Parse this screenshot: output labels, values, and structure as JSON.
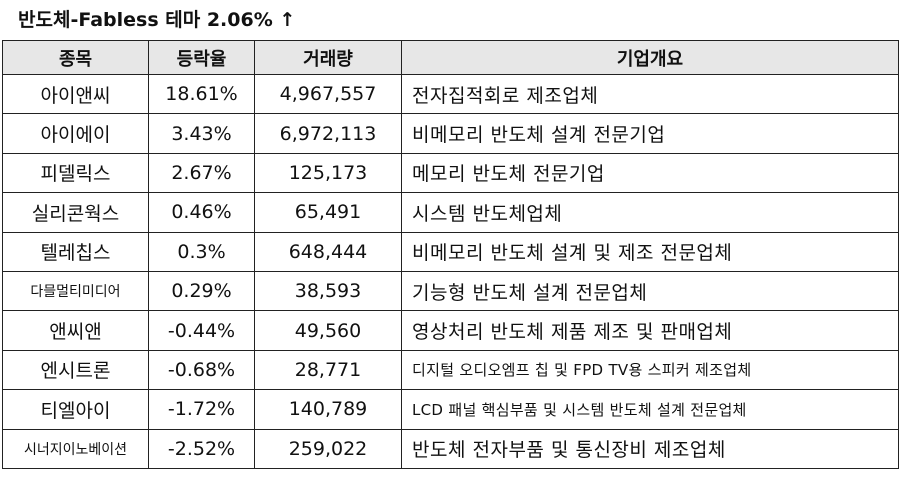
{
  "title": "반도체-Fabless 테마 2.06% ↑",
  "headers": [
    "종목",
    "등락율",
    "거래량",
    "기업개요"
  ],
  "rows": [
    {
      "name": "아이앤씨",
      "change": "18.61%",
      "volume": "4,967,557",
      "desc": "전자집적회로 제조업체"
    },
    {
      "name": "아이에이",
      "change": "3.43%",
      "volume": "6,972,113",
      "desc": "비메모리 반도체 설계 전문기업"
    },
    {
      "name": "피델릭스",
      "change": "2.67%",
      "volume": "125,173",
      "desc": "메모리 반도체 전문기업"
    },
    {
      "name": "실리콘웍스",
      "change": "0.46%",
      "volume": "65,491",
      "desc": "시스템 반도체업체"
    },
    {
      "name": "텔레칩스",
      "change": "0.3%",
      "volume": "648,444",
      "desc": "비메모리 반도체 설계 및 제조 전문업체"
    },
    {
      "name": "다믈멀티미디어",
      "change": "0.29%",
      "volume": "38,593",
      "desc": "기능형 반도체 설계 전문업체"
    },
    {
      "name": "앤씨앤",
      "change": "-0.44%",
      "volume": "49,560",
      "desc": "영상처리 반도체 제품 제조 및 판매업체"
    },
    {
      "name": "엔시트론",
      "change": "-0.68%",
      "volume": "28,771",
      "desc": "디지털 오디오엠프 칩 및 FPD TV용 스피커 제조업체"
    },
    {
      "name": "티엘아이",
      "change": "-1.72%",
      "volume": "140,789",
      "desc": "LCD 패널 핵심부품 및 시스템 반도체 설계 전문업체"
    },
    {
      "name": "시너지이노베이션",
      "change": "-2.52%",
      "volume": "259,022",
      "desc": "반도체 전자부품 및 통신장비 제조업체"
    }
  ]
}
